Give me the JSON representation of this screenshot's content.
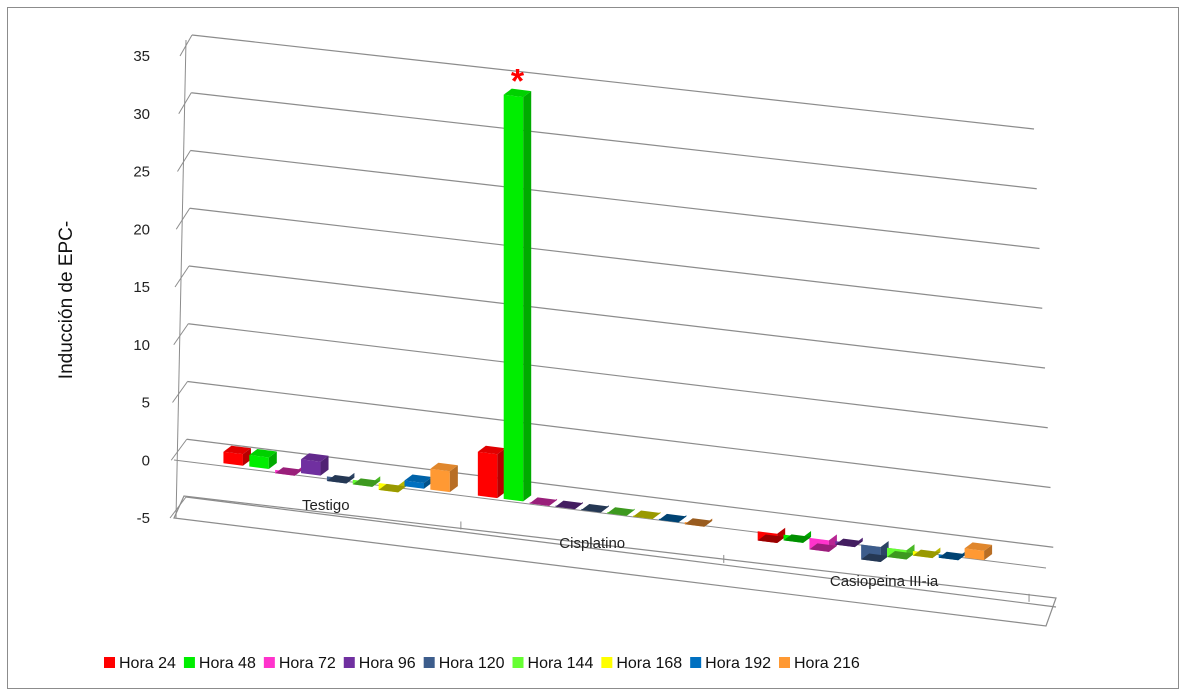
{
  "chart_data": {
    "type": "bar",
    "title": "",
    "xlabel": "",
    "ylabel": "Inducción de EPC-",
    "ylim": [
      -5,
      35
    ],
    "yticks": [
      -5,
      0,
      5,
      10,
      15,
      20,
      25,
      30,
      35
    ],
    "categories": [
      "Testigo",
      "Cisplatino",
      "Casiopeina III-ia"
    ],
    "legend_position": "bottom",
    "grid": true,
    "series": [
      {
        "name": "Hora 24",
        "color": "#ff0000",
        "values": [
          1.0,
          3.8,
          -0.8
        ]
      },
      {
        "name": "Hora 48",
        "color": "#00ee00",
        "values": [
          1.0,
          35.0,
          -0.5
        ]
      },
      {
        "name": "Hora 72",
        "color": "#ff33cc",
        "values": [
          -0.3,
          -0.1,
          -1.0
        ]
      },
      {
        "name": "Hora 96",
        "color": "#7030a0",
        "values": [
          1.2,
          -0.1,
          -0.3
        ]
      },
      {
        "name": "Hora 120",
        "color": "#3d5d8c",
        "values": [
          -0.4,
          -0.1,
          -1.3
        ]
      },
      {
        "name": "Hora 144",
        "color": "#66ff33",
        "values": [
          -0.4,
          -0.1,
          -0.8
        ]
      },
      {
        "name": "Hora 168",
        "color": "#ffff00",
        "values": [
          -0.6,
          -0.1,
          -0.4
        ]
      },
      {
        "name": "Hora 192",
        "color": "#0070c0",
        "values": [
          0.5,
          -0.1,
          -0.3
        ]
      },
      {
        "name": "Hora 216",
        "color": "#ff9933",
        "values": [
          1.8,
          -0.2,
          0.8
        ]
      }
    ],
    "annotation": {
      "text": "*",
      "color": "#ff0000",
      "category": "Cisplatino",
      "series": "Hora 48"
    }
  }
}
